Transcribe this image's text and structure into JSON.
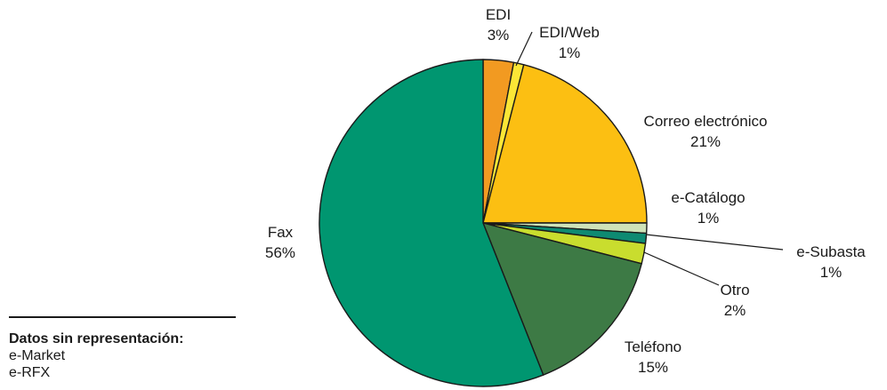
{
  "chart_data": {
    "type": "pie",
    "title": "",
    "slices": [
      {
        "name": "EDI",
        "value": 3,
        "pct_label": "3%",
        "color": "#f29a21"
      },
      {
        "name": "EDI/Web",
        "value": 1,
        "pct_label": "1%",
        "color": "#fbe636"
      },
      {
        "name": "Correo electrónico",
        "value": 21,
        "pct_label": "21%",
        "color": "#fcbf12"
      },
      {
        "name": "e-Catálogo",
        "value": 1,
        "pct_label": "1%",
        "color": "#cfe3b8"
      },
      {
        "name": "e-Subasta",
        "value": 1,
        "pct_label": "1%",
        "color": "#0e8a72"
      },
      {
        "name": "Otro",
        "value": 2,
        "pct_label": "2%",
        "color": "#c9dd2e"
      },
      {
        "name": "Teléfono",
        "value": 15,
        "pct_label": "15%",
        "color": "#3d7a45"
      },
      {
        "name": "Fax",
        "value": 56,
        "pct_label": "56%",
        "color": "#009670"
      }
    ],
    "start_angle_deg": 0,
    "direction": "clockwise"
  },
  "note": {
    "heading": "Datos sin representación:",
    "items": [
      "e-Market",
      "e-RFX"
    ]
  }
}
